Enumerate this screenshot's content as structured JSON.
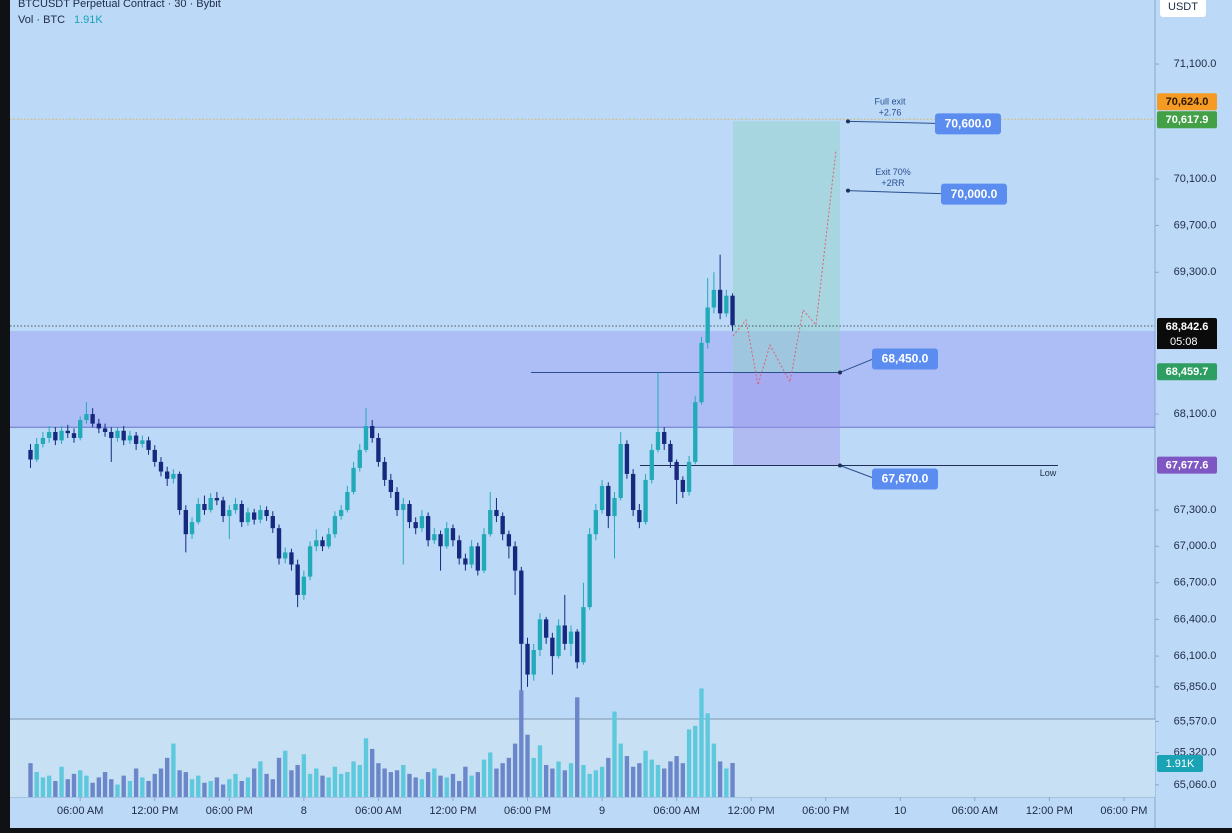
{
  "header": {
    "symbol": "BTCUSDT Perpetual Contract · 30 · Bybit",
    "vol": "Vol · BTC",
    "vol_value": "1.91K"
  },
  "chart_data": {
    "type": "candlestick",
    "log_scale": true,
    "grid": false,
    "currency": "USDT",
    "up_color": "#22aab9",
    "down_color": "#16297e",
    "ylim": [
      64963,
      71663
    ],
    "yticks": [
      {
        "value": 71100,
        "label": "71,100.0"
      },
      {
        "value": 70100,
        "label": "70,100.0"
      },
      {
        "value": 69700,
        "label": "69,700.0"
      },
      {
        "value": 69300,
        "label": "69,300.0"
      },
      {
        "value": 68100,
        "label": "68,100.0"
      },
      {
        "value": 67300,
        "label": "67,300.0"
      },
      {
        "value": 67000,
        "label": "67,000.0"
      },
      {
        "value": 66700,
        "label": "66,700.0"
      },
      {
        "value": 66400,
        "label": "66,400.0"
      },
      {
        "value": 66100,
        "label": "66,100.0"
      },
      {
        "value": 65850,
        "label": "65,850.0"
      },
      {
        "value": 65570,
        "label": "65,570.0"
      },
      {
        "value": 65320,
        "label": "65,320.0"
      },
      {
        "value": 65060,
        "label": "65,060.0"
      }
    ],
    "xlim": [
      0.7,
      185
    ],
    "xticks": [
      {
        "value": 12,
        "label": "06:00 AM"
      },
      {
        "value": 24,
        "label": "12:00 PM"
      },
      {
        "value": 36,
        "label": "06:00 PM"
      },
      {
        "value": 48,
        "label": "8"
      },
      {
        "value": 60,
        "label": "06:00 AM"
      },
      {
        "value": 72,
        "label": "12:00 PM"
      },
      {
        "value": 84,
        "label": "06:00 PM"
      },
      {
        "value": 96,
        "label": "9"
      },
      {
        "value": 108,
        "label": "06:00 AM"
      },
      {
        "value": 120,
        "label": "12:00 PM"
      },
      {
        "value": 132,
        "label": "06:00 PM"
      },
      {
        "value": 144,
        "label": "10"
      },
      {
        "value": 156,
        "label": "06:00 AM"
      },
      {
        "value": 168,
        "label": "12:00 PM"
      },
      {
        "value": 180,
        "label": "06:00 PM"
      }
    ],
    "x": [
      4,
      5,
      6,
      7,
      8,
      9,
      10,
      11,
      12,
      13,
      14,
      15,
      16,
      17,
      18,
      19,
      20,
      21,
      22,
      23,
      24,
      25,
      26,
      27,
      28,
      29,
      30,
      31,
      32,
      33,
      34,
      35,
      36,
      37,
      38,
      39,
      40,
      41,
      42,
      43,
      44,
      45,
      46,
      47,
      48,
      49,
      50,
      51,
      52,
      53,
      54,
      55,
      56,
      57,
      58,
      59,
      60,
      61,
      62,
      63,
      64,
      65,
      66,
      67,
      68,
      69,
      70,
      71,
      72,
      73,
      74,
      75,
      76,
      77,
      78,
      79,
      80,
      81,
      82,
      83,
      84,
      85,
      86,
      87,
      88,
      89,
      90,
      91,
      92,
      93,
      94,
      95,
      96,
      97,
      98,
      99,
      100,
      101,
      102,
      103,
      104,
      105,
      106,
      107,
      108,
      109,
      110,
      111,
      112,
      113,
      114,
      115,
      116,
      117
    ],
    "ohlc": [
      [
        67800,
        67850,
        67650,
        67720
      ],
      [
        67720,
        67900,
        67700,
        67850
      ],
      [
        67850,
        67950,
        67820,
        67900
      ],
      [
        67900,
        68000,
        67860,
        67950
      ],
      [
        67950,
        67990,
        67840,
        67880
      ],
      [
        67880,
        68000,
        67850,
        67960
      ],
      [
        67960,
        68010,
        67900,
        67940
      ],
      [
        67940,
        67980,
        67860,
        67900
      ],
      [
        67900,
        68080,
        67880,
        68050
      ],
      [
        68050,
        68200,
        68020,
        68100
      ],
      [
        68100,
        68150,
        67990,
        68020
      ],
      [
        68020,
        68060,
        67940,
        67980
      ],
      [
        67980,
        68020,
        67910,
        67950
      ],
      [
        67950,
        67990,
        67700,
        67900
      ],
      [
        67900,
        67990,
        67870,
        67960
      ],
      [
        67960,
        68000,
        67840,
        67880
      ],
      [
        67880,
        67960,
        67850,
        67920
      ],
      [
        67920,
        67950,
        67800,
        67850
      ],
      [
        67850,
        67920,
        67820,
        67880
      ],
      [
        67880,
        67910,
        67760,
        67800
      ],
      [
        67800,
        67840,
        67660,
        67700
      ],
      [
        67700,
        67740,
        67580,
        67620
      ],
      [
        67620,
        67660,
        67500,
        67560
      ],
      [
        67560,
        67640,
        67520,
        67600
      ],
      [
        67600,
        67620,
        67260,
        67300
      ],
      [
        67300,
        67340,
        66950,
        67100
      ],
      [
        67100,
        67240,
        67060,
        67200
      ],
      [
        67200,
        67400,
        67180,
        67350
      ],
      [
        67350,
        67420,
        67260,
        67300
      ],
      [
        67300,
        67440,
        67280,
        67400
      ],
      [
        67400,
        67450,
        67340,
        67380
      ],
      [
        67380,
        67410,
        67200,
        67250
      ],
      [
        67250,
        67340,
        67060,
        67300
      ],
      [
        67300,
        67400,
        67270,
        67350
      ],
      [
        67350,
        67380,
        67160,
        67200
      ],
      [
        67200,
        67320,
        67170,
        67280
      ],
      [
        67280,
        67310,
        67180,
        67220
      ],
      [
        67220,
        67340,
        67190,
        67300
      ],
      [
        67300,
        67330,
        67210,
        67250
      ],
      [
        67250,
        67290,
        67110,
        67150
      ],
      [
        67150,
        67180,
        66850,
        66900
      ],
      [
        66900,
        66990,
        66860,
        66950
      ],
      [
        66950,
        66980,
        66800,
        66850
      ],
      [
        66850,
        66890,
        66500,
        66600
      ],
      [
        66600,
        66800,
        66560,
        66750
      ],
      [
        66750,
        67040,
        66720,
        67000
      ],
      [
        67000,
        67140,
        66960,
        67050
      ],
      [
        67050,
        67080,
        66960,
        67000
      ],
      [
        67000,
        67150,
        66980,
        67100
      ],
      [
        67100,
        67290,
        67070,
        67250
      ],
      [
        67250,
        67340,
        67220,
        67300
      ],
      [
        67300,
        67500,
        67280,
        67450
      ],
      [
        67450,
        67700,
        67430,
        67650
      ],
      [
        67650,
        67850,
        67620,
        67800
      ],
      [
        67800,
        68150,
        67780,
        68000
      ],
      [
        68000,
        68050,
        67860,
        67900
      ],
      [
        67900,
        67940,
        67660,
        67700
      ],
      [
        67700,
        67740,
        67500,
        67550
      ],
      [
        67550,
        67600,
        67400,
        67450
      ],
      [
        67450,
        67490,
        67250,
        67300
      ],
      [
        67300,
        67400,
        66850,
        67350
      ],
      [
        67350,
        67380,
        67150,
        67200
      ],
      [
        67200,
        67240,
        67100,
        67150
      ],
      [
        67150,
        67300,
        67120,
        67250
      ],
      [
        67250,
        67280,
        67000,
        67050
      ],
      [
        67050,
        67150,
        67020,
        67100
      ],
      [
        67100,
        67130,
        66800,
        67000
      ],
      [
        67000,
        67200,
        66980,
        67150
      ],
      [
        67150,
        67180,
        67000,
        67050
      ],
      [
        67050,
        67090,
        66850,
        66900
      ],
      [
        66900,
        66940,
        66800,
        66850
      ],
      [
        66850,
        67050,
        66820,
        67000
      ],
      [
        67000,
        67030,
        66760,
        66800
      ],
      [
        66800,
        67150,
        66780,
        67100
      ],
      [
        67100,
        67450,
        67080,
        67300
      ],
      [
        67300,
        67400,
        67200,
        67250
      ],
      [
        67250,
        67280,
        67050,
        67100
      ],
      [
        67100,
        67130,
        66900,
        67000
      ],
      [
        67000,
        67040,
        66600,
        66800
      ],
      [
        66800,
        66830,
        65700,
        66200
      ],
      [
        66200,
        66250,
        65850,
        65950
      ],
      [
        65950,
        66200,
        65900,
        66150
      ],
      [
        66150,
        66450,
        66100,
        66400
      ],
      [
        66400,
        66420,
        66200,
        66250
      ],
      [
        66250,
        66290,
        65950,
        66100
      ],
      [
        66100,
        66400,
        66080,
        66350
      ],
      [
        66350,
        66600,
        66150,
        66200
      ],
      [
        66200,
        66350,
        66100,
        66300
      ],
      [
        66300,
        66320,
        66000,
        66050
      ],
      [
        66050,
        66700,
        66030,
        66500
      ],
      [
        66500,
        67150,
        66480,
        67100
      ],
      [
        67100,
        67350,
        67050,
        67300
      ],
      [
        67300,
        67550,
        67270,
        67500
      ],
      [
        67500,
        67530,
        67150,
        67250
      ],
      [
        67250,
        67450,
        66900,
        67400
      ],
      [
        67400,
        67950,
        67380,
        67850
      ],
      [
        67850,
        67880,
        67560,
        67600
      ],
      [
        67600,
        67640,
        67250,
        67300
      ],
      [
        67300,
        67350,
        67150,
        67200
      ],
      [
        67200,
        67600,
        67180,
        67550
      ],
      [
        67550,
        67850,
        67520,
        67800
      ],
      [
        67800,
        68450,
        67780,
        67950
      ],
      [
        67950,
        67990,
        67800,
        67850
      ],
      [
        67850,
        67880,
        67650,
        67700
      ],
      [
        67700,
        67720,
        67350,
        67550
      ],
      [
        67550,
        67580,
        67400,
        67450
      ],
      [
        67450,
        67750,
        67420,
        67700
      ],
      [
        67700,
        68250,
        67680,
        68200
      ],
      [
        68200,
        68750,
        68180,
        68700
      ],
      [
        68700,
        69250,
        68650,
        69000
      ],
      [
        69000,
        69300,
        68950,
        69150
      ],
      [
        69150,
        69450,
        68900,
        68950
      ],
      [
        68950,
        69150,
        68920,
        69100
      ],
      [
        69100,
        69120,
        68800,
        68850
      ]
    ],
    "volume": {
      "ylim": [
        0,
        10000
      ],
      "up_color": "#5ec8dc",
      "down_color": "#6b86c9",
      "values": [
        1900,
        1400,
        1100,
        1200,
        900,
        1700,
        1000,
        1300,
        1500,
        1200,
        800,
        1100,
        1400,
        1000,
        700,
        1200,
        900,
        1600,
        1100,
        900,
        1300,
        1600,
        2200,
        3000,
        1500,
        1400,
        1000,
        1200,
        800,
        900,
        1100,
        700,
        1000,
        1300,
        900,
        1100,
        1600,
        2000,
        1300,
        1000,
        2200,
        2600,
        1500,
        1800,
        2400,
        1300,
        1600,
        1200,
        1100,
        1700,
        1300,
        1400,
        2000,
        1800,
        3300,
        2700,
        1900,
        1600,
        1400,
        1500,
        1800,
        1300,
        1100,
        1000,
        1400,
        1600,
        1200,
        1100,
        1300,
        900,
        1700,
        1200,
        1400,
        2100,
        2500,
        1600,
        1900,
        2200,
        3000,
        6000,
        3500,
        2200,
        2900,
        1800,
        1600,
        2000,
        1500,
        1900,
        5600,
        1800,
        1300,
        1500,
        1700,
        2200,
        4800,
        3000,
        2300,
        1700,
        1900,
        2600,
        2100,
        1800,
        1600,
        2000,
        2300,
        1900,
        3800,
        4000,
        6100,
        4700,
        3000,
        2000,
        1600,
        1910
      ],
      "last_label": "1.91K"
    },
    "zone": [
      68800,
      67990
    ],
    "price_labels": [
      {
        "value": 70617.9,
        "label": "70,617.9",
        "color": "#43a047"
      },
      {
        "value": 70624.0,
        "label": "70,624.0",
        "color": "#f59a23"
      },
      {
        "value": 68842.6,
        "label": "68,842.6",
        "color": "#0b0b0b"
      },
      {
        "value": 68459.7,
        "label": "68,459.7",
        "color": "#2e9e63"
      },
      {
        "value": 67677.6,
        "label": "67,677.6",
        "color": "#7e57c2"
      }
    ],
    "countdown": "05:08",
    "position": {
      "target": 70600,
      "target_label": "70,600.0",
      "target_note": [
        "Full exit",
        "+2.76"
      ],
      "tp1": 70000,
      "tp1_label": "70,000.0",
      "tp1_note": [
        "Exit 70%",
        "+2RR"
      ],
      "entry": 68450,
      "entry_label": "68,450.0",
      "stop": 67670,
      "stop_label": "67,670.0",
      "stop_note": "Low"
    }
  }
}
